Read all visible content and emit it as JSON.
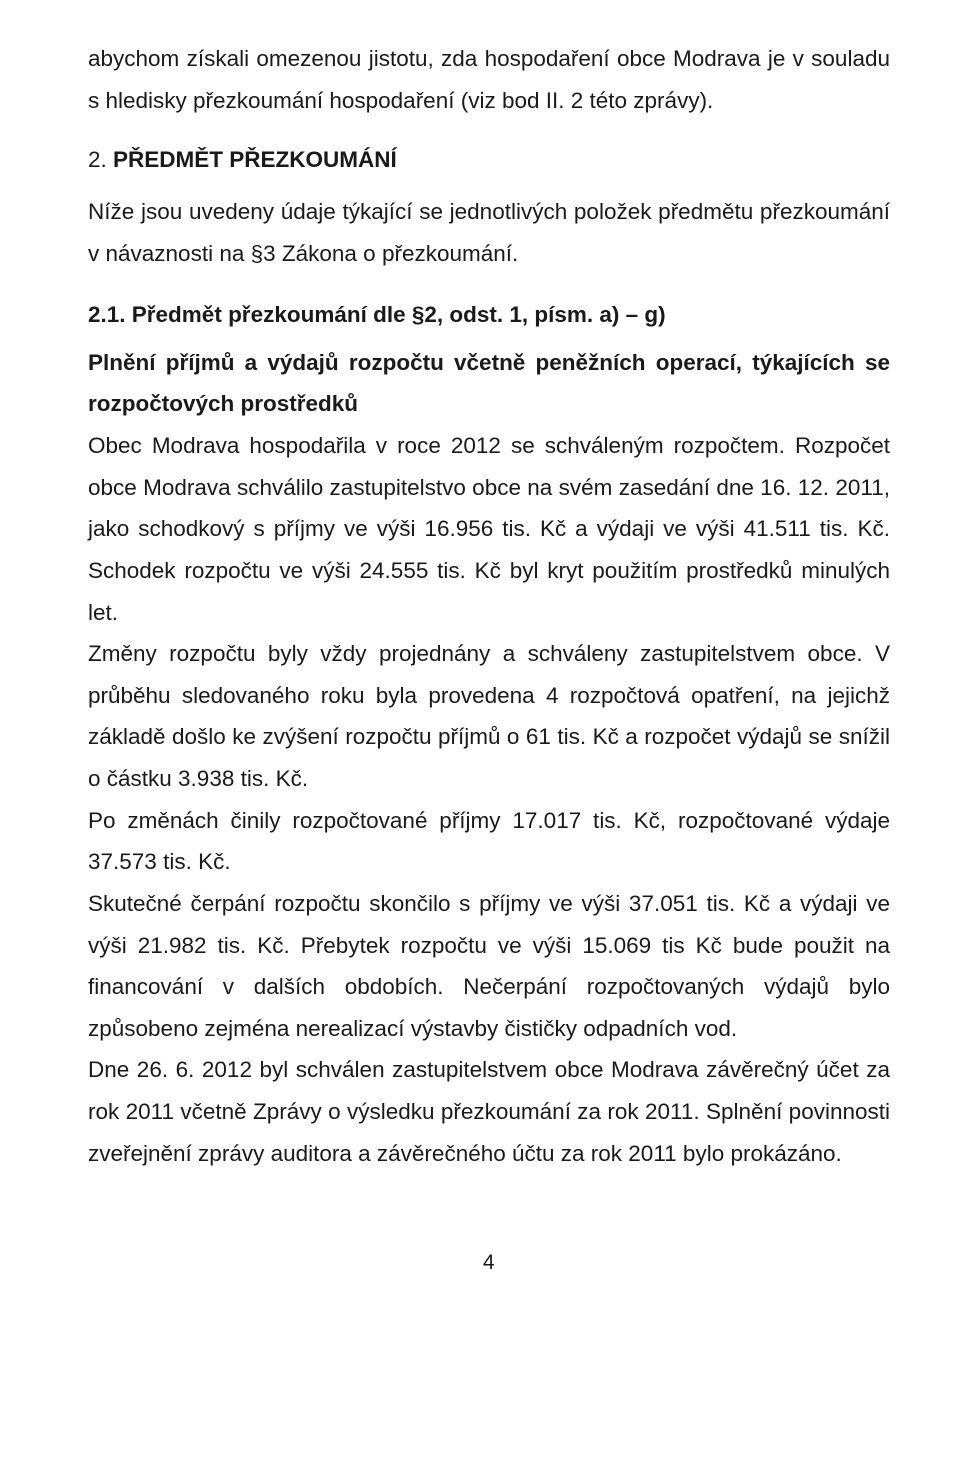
{
  "intro": {
    "line1": "abychom získali omezenou jistotu, zda hospodaření obce Modrava je v souladu s hledisky přezkoumání hospodaření (viz bod II. 2 této zprávy)."
  },
  "section2": {
    "heading_num": "2.",
    "heading_text": "PŘEDMĚT PŘEZKOUMÁNÍ",
    "sub": "Níže jsou uvedeny údaje týkající se jednotlivých položek předmětu přezkoumání v návaznosti na §3 Zákona o přezkoumání."
  },
  "section21": {
    "heading": "2.1. Předmět přezkoumání dle §2, odst. 1, písm. a) – g)",
    "lead_bold": "Plnění příjmů a výdajů rozpočtu včetně peněžních operací, týkajících se rozpočtových prostředků",
    "body": "Obec Modrava hospodařila v roce 2012 se schváleným rozpočtem. Rozpočet obce Modrava schválilo zastupitelstvo obce na svém zasedání dne 16. 12. 2011, jako schodkový s příjmy ve výši 16.956 tis. Kč a výdaji ve výši 41.511 tis. Kč. Schodek rozpočtu ve výši 24.555 tis. Kč byl kryt použitím prostředků minulých let.",
    "body2": "Změny rozpočtu byly vždy projednány a schváleny zastupitelstvem obce. V průběhu sledovaného roku byla provedena 4 rozpočtová opatření, na jejichž základě došlo ke zvýšení rozpočtu příjmů o 61 tis. Kč a rozpočet výdajů se snížil o částku 3.938 tis. Kč.",
    "body3": "Po změnách činily rozpočtované příjmy 17.017 tis. Kč, rozpočtované výdaje 37.573 tis. Kč.",
    "body4": "Skutečné čerpání rozpočtu skončilo s příjmy ve výši 37.051 tis. Kč a výdaji ve výši 21.982 tis. Kč. Přebytek rozpočtu ve výši 15.069 tis Kč bude použit na financování v dalších obdobích. Nečerpání rozpočtovaných výdajů bylo způsobeno zejména nerealizací výstavby čističky odpadních vod.",
    "body5": "Dne 26. 6. 2012 byl schválen zastupitelstvem obce Modrava závěrečný účet za rok 2011 včetně Zprávy o výsledku přezkoumání za rok 2011. Splnění povinnosti zveřejnění zprávy auditora a závěrečného účtu za rok 2011 bylo prokázáno."
  },
  "page_number": "4"
}
